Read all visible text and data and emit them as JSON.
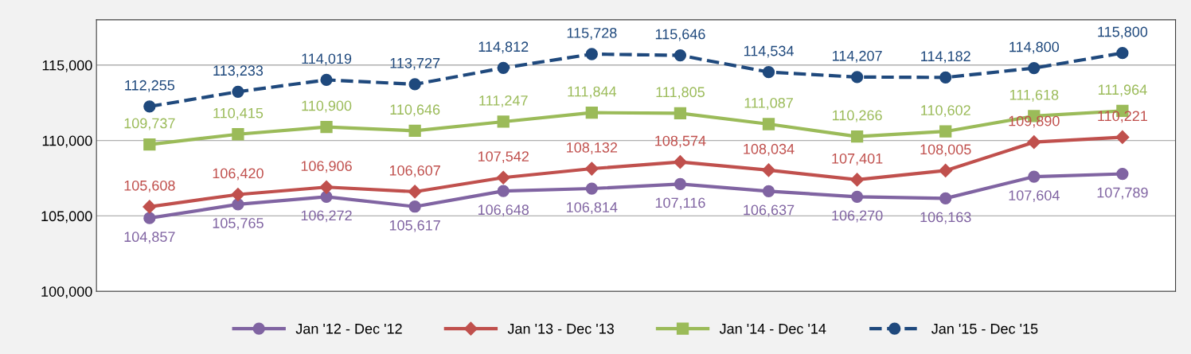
{
  "chart_data": {
    "type": "line",
    "categories": [
      null,
      null,
      null,
      null,
      null,
      null,
      null,
      null,
      null,
      null,
      null,
      null
    ],
    "series": [
      {
        "name": "Jan '12 - Dec '12",
        "color": "#8064a2",
        "marker": "circle",
        "line_style": "solid",
        "values": [
          104857,
          105765,
          106272,
          105617,
          106648,
          106814,
          107116,
          106637,
          106270,
          106163,
          107604,
          107789
        ],
        "value_labels": [
          "104,857",
          "105,765",
          "106,272",
          "105,617",
          "106,648",
          "106,814",
          "107,116",
          "106,637",
          "106,270",
          "106,163",
          "107,604",
          "107,789"
        ]
      },
      {
        "name": "Jan '13 - Dec '13",
        "color": "#c0504d",
        "marker": "diamond",
        "line_style": "solid",
        "values": [
          105608,
          106420,
          106906,
          106607,
          107542,
          108132,
          108574,
          108034,
          107401,
          108005,
          109890,
          110221
        ],
        "value_labels": [
          "105,608",
          "106,420",
          "106,906",
          "106,607",
          "107,542",
          "108,132",
          "108,574",
          "108,034",
          "107,401",
          "108,005",
          "109,890",
          "110,221"
        ]
      },
      {
        "name": "Jan '14 - Dec '14",
        "color": "#9bbb59",
        "marker": "square",
        "line_style": "solid",
        "values": [
          109737,
          110415,
          110900,
          110646,
          111247,
          111844,
          111805,
          111087,
          110266,
          110602,
          111618,
          111964
        ],
        "value_labels": [
          "109,737",
          "110,415",
          "110,900",
          "110,646",
          "111,247",
          "111,844",
          "111,805",
          "111,087",
          "110,266",
          "110,602",
          "111,618",
          "111,964"
        ]
      },
      {
        "name": "Jan '15 - Dec '15",
        "color": "#1f497d",
        "marker": "circle",
        "line_style": "dashed",
        "values": [
          112255,
          113233,
          114019,
          113727,
          114812,
          115728,
          115646,
          114534,
          114207,
          114182,
          114800,
          115800
        ],
        "value_labels": [
          "112,255",
          "113,233",
          "114,019",
          "113,727",
          "114,812",
          "115,728",
          "115,646",
          "114,534",
          "114,207",
          "114,182",
          "114,800",
          "115,800"
        ]
      }
    ],
    "ylim": [
      100000,
      118000
    ],
    "yticks": [
      {
        "value": 100000,
        "label": "100,000"
      },
      {
        "value": 105000,
        "label": "105,000"
      },
      {
        "value": 110000,
        "label": "110,000"
      },
      {
        "value": 115000,
        "label": "115,000"
      }
    ],
    "grid": "y",
    "legend": "bottom"
  }
}
